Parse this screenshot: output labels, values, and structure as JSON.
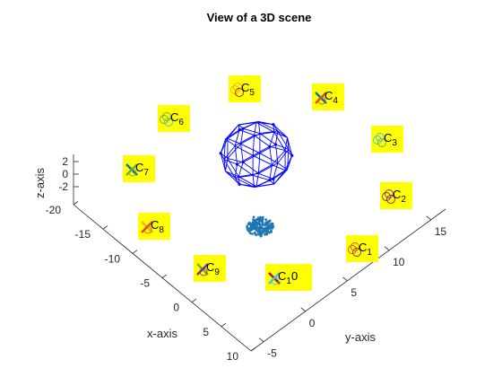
{
  "chart_data": {
    "type": "scatter",
    "title": "View of a 3D scene",
    "xlabel": "x-axis",
    "ylabel": "y-axis",
    "zlabel": "z-axis",
    "xlim": [
      -20,
      10
    ],
    "ylim": [
      -5,
      15
    ],
    "zlim": [
      -2,
      2
    ],
    "x_ticks": [
      "-20",
      "-15",
      "-10",
      "-5",
      "0",
      "5",
      "10"
    ],
    "y_ticks": [
      "-5",
      "0",
      "5",
      "10",
      "15"
    ],
    "z_ticks": [
      "2",
      "0",
      "-2"
    ],
    "grid": false,
    "label_background": "#ffff00",
    "mesh_color": "#0000ff",
    "points_color": "#1f77b4",
    "cameras": [
      {
        "main": "C",
        "sub": "1",
        "ticks": [
          0.37,
          0.75
        ],
        "marker": "o",
        "colors": [
          "#d95319",
          "#7e2f8e"
        ]
      },
      {
        "main": "C",
        "sub": "2",
        "ticks": [
          0.12,
          0.6
        ],
        "marker": "o",
        "colors": [
          "#7e2f8e",
          "#a2142f"
        ]
      },
      {
        "main": "C",
        "sub": "3",
        "ticks": [
          0.86,
          0.5
        ],
        "marker": "o",
        "colors": [
          "#4dbeee",
          "#77ac30"
        ]
      },
      {
        "main": "C",
        "sub": "4",
        "ticks": [
          0.62,
          0.25
        ],
        "marker": "x",
        "colors": [
          "#0072bd",
          "#d95319"
        ]
      },
      {
        "main": "C",
        "sub": "5",
        "ticks": [
          0.37,
          0.0
        ],
        "marker": "o",
        "colors": [
          "#edb120",
          "#a2142f"
        ]
      },
      {
        "main": "C",
        "sub": "6",
        "ticks": [
          0.12,
          0.75
        ],
        "marker": "o",
        "colors": [
          "#77ac30",
          "#4dbeee"
        ]
      },
      {
        "main": "C",
        "sub": "7",
        "ticks": [
          0.86,
          0.5
        ],
        "marker": "x",
        "colors": [
          "#0072bd",
          "#77ac30"
        ]
      },
      {
        "main": "C",
        "sub": "8",
        "ticks": [
          0.62,
          0.25
        ],
        "marker": "x",
        "colors": [
          "#edb120",
          "#d95319"
        ]
      },
      {
        "main": "C",
        "sub": "9",
        "ticks": [
          0.37,
          0.0
        ],
        "marker": "x",
        "colors": [
          "#77ac30",
          "#7e2f8e"
        ]
      },
      {
        "main": "C",
        "sub": "10",
        "sub_visible": "1",
        "tail": "0",
        "ticks": [
          0.12,
          0.75
        ],
        "marker": "x",
        "colors": [
          "#a2142f",
          "#4dbeee"
        ]
      }
    ]
  }
}
